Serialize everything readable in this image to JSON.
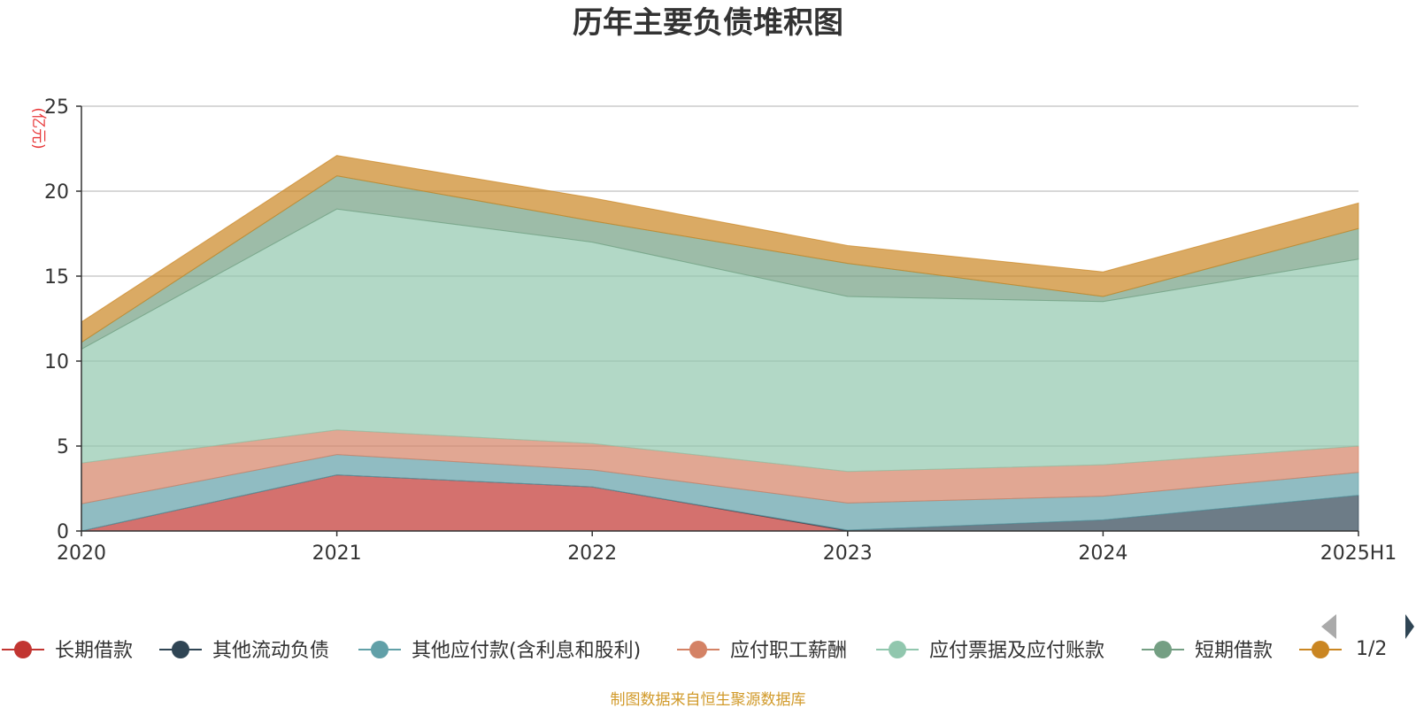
{
  "chart_data": {
    "type": "area",
    "title": "历年主要负债堆积图",
    "unit": "(亿元)",
    "categories": [
      "2020",
      "2021",
      "2022",
      "2023",
      "2024",
      "2025H1"
    ],
    "ylim": [
      0,
      25
    ],
    "yticks": [
      0,
      5,
      10,
      15,
      20,
      25
    ],
    "stacked": true,
    "grid": true,
    "legend_position": "bottom",
    "series": [
      {
        "name": "长期借款",
        "color": "#c23531",
        "values": [
          0,
          3.3,
          2.6,
          0,
          0,
          0
        ]
      },
      {
        "name": "其他流动负债",
        "color": "#2f4554",
        "values": [
          0,
          0,
          0,
          0.05,
          0.65,
          2.1
        ]
      },
      {
        "name": "其他应付款(含利息和股利)",
        "color": "#61a0a8",
        "values": [
          1.6,
          1.2,
          1.0,
          1.6,
          1.4,
          1.35
        ]
      },
      {
        "name": "应付职工薪酬",
        "color": "#d48265",
        "values": [
          2.4,
          1.45,
          1.55,
          1.85,
          1.85,
          1.55
        ]
      },
      {
        "name": "应付票据及应付账款",
        "color": "#91c7ae",
        "values": [
          6.7,
          13.0,
          11.85,
          10.3,
          9.6,
          11.0
        ]
      },
      {
        "name": "短期借款",
        "color": "#749f83",
        "values": [
          0.4,
          1.95,
          1.25,
          1.95,
          0.3,
          1.8
        ]
      },
      {
        "name": "",
        "color": "#ca8622",
        "values": [
          1.2,
          1.2,
          1.35,
          1.05,
          1.45,
          1.5
        ]
      }
    ],
    "legend_page": "1/2"
  },
  "footer": {
    "source": "制图数据来自恒生聚源数据库"
  }
}
